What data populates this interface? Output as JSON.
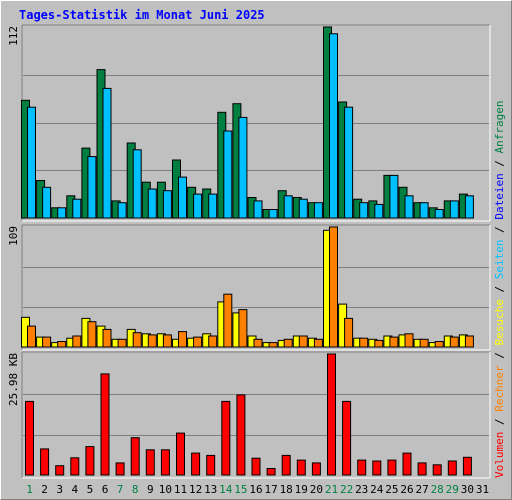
{
  "chart_data": {
    "title": "Tages-Statistik im Monat Juni 2025",
    "type": "bar",
    "categories": [
      "1",
      "2",
      "3",
      "4",
      "5",
      "6",
      "7",
      "8",
      "9",
      "10",
      "11",
      "12",
      "13",
      "14",
      "15",
      "16",
      "17",
      "18",
      "19",
      "20",
      "21",
      "22",
      "23",
      "24",
      "25",
      "26",
      "27",
      "28",
      "29",
      "30",
      "31"
    ],
    "weekend_days": [
      "1",
      "7",
      "8",
      "14",
      "15",
      "21",
      "22",
      "28",
      "29"
    ],
    "panels": [
      {
        "id": "requests",
        "axis_max_label": "112",
        "ymax": 112,
        "series": [
          {
            "name": "Anfragen",
            "color": "#008040",
            "values": [
              69,
              22,
              6,
              13,
              41,
              87,
              10,
              44,
              21,
              21,
              34,
              18,
              17,
              62,
              67,
              12,
              5,
              16,
              12,
              9,
              112,
              68,
              11,
              10,
              25,
              18,
              9,
              6,
              10,
              14,
              0
            ]
          },
          {
            "name": "Dateien",
            "color": "#00c0ff",
            "values": [
              65,
              18,
              6,
              11,
              36,
              76,
              9,
              40,
              17,
              16,
              24,
              14,
              14,
              51,
              59,
              10,
              5,
              13,
              11,
              9,
              108,
              65,
              9,
              8,
              25,
              13,
              9,
              5,
              10,
              13,
              0
            ]
          }
        ]
      },
      {
        "id": "visits",
        "axis_max_label": "109",
        "ymax": 109,
        "series": [
          {
            "name": "Seiten",
            "color": "#ffff00",
            "values": [
              27,
              9,
              4,
              8,
              26,
              19,
              7,
              16,
              12,
              12,
              7,
              8,
              12,
              41,
              31,
              10,
              4,
              6,
              10,
              8,
              106,
              39,
              8,
              7,
              10,
              11,
              7,
              4,
              10,
              11,
              0
            ]
          },
          {
            "name": "Besuche",
            "color": "#ff8000",
            "values": [
              19,
              9,
              5,
              10,
              23,
              16,
              7,
              13,
              11,
              11,
              14,
              9,
              10,
              48,
              34,
              7,
              4,
              7,
              10,
              7,
              109,
              26,
              8,
              6,
              9,
              12,
              7,
              5,
              9,
              10,
              0
            ]
          }
        ]
      },
      {
        "id": "volume",
        "axis_max_label": "25.98 KB",
        "ymax": 25.98,
        "series": [
          {
            "name": "Volumen",
            "color": "#ff0000",
            "values": [
              15.8,
              5.6,
              2.0,
              3.7,
              6.1,
              21.7,
              2.6,
              8.0,
              5.4,
              5.4,
              9.0,
              4.7,
              4.2,
              15.8,
              17.2,
              3.6,
              1.4,
              4.2,
              3.2,
              2.6,
              25.98,
              15.8,
              3.2,
              3.0,
              3.2,
              4.7,
              2.6,
              2.2,
              3.0,
              3.8,
              0
            ]
          }
        ]
      }
    ],
    "legend_right": [
      {
        "text": "Volumen",
        "color": "#ff0000"
      },
      {
        "text": "Rechner",
        "color": "#ff8000"
      },
      {
        "text": "Besuche",
        "color": "#ffff00"
      },
      {
        "text": "Seiten",
        "color": "#00c0ff"
      },
      {
        "text": "Dateien",
        "color": "#0000ff"
      },
      {
        "text": "Anfragen",
        "color": "#008040"
      }
    ],
    "legend_separator": "/",
    "colors": {
      "background": "#c0c0c0",
      "title": "#0000ff",
      "weekday_label": "#000000",
      "weekend_label": "#008040",
      "grid": "#808080"
    }
  }
}
